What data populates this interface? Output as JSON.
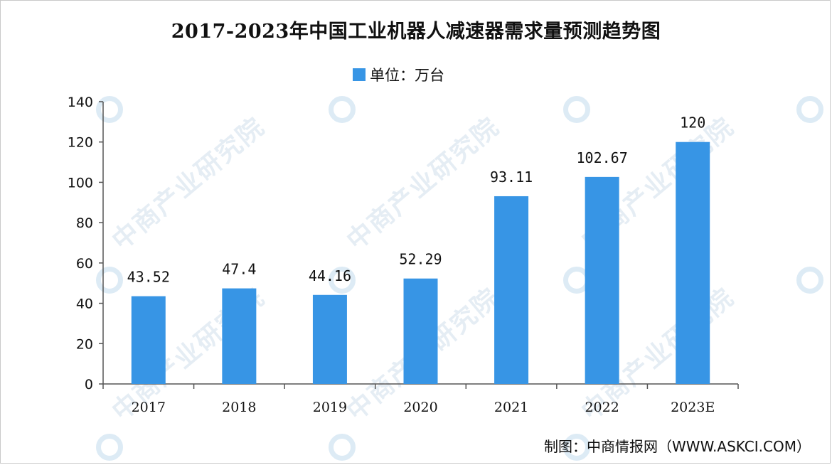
{
  "title": "2017-2023年中国工业机器人减速器需求量预测趋势图",
  "legend_label": "单位：万台",
  "source": "制图：中商情报网（WWW.ASKCI.COM）",
  "watermark_text": "中商产业研究院",
  "colors": {
    "bar": "#3795e5",
    "axis": "#555555",
    "text": "#111111"
  },
  "chart_data": {
    "type": "bar",
    "title": "2017-2023年中国工业机器人减速器需求量预测趋势图",
    "categories": [
      "2017",
      "2018",
      "2019",
      "2020",
      "2021",
      "2022",
      "2023E"
    ],
    "series": [
      {
        "name": "单位：万台",
        "values": [
          43.52,
          47.4,
          44.16,
          52.29,
          93.11,
          102.67,
          120
        ]
      }
    ],
    "value_labels": [
      "43.52",
      "47.4",
      "44.16",
      "52.29",
      "93.11",
      "102.67",
      "120"
    ],
    "ylim": [
      0,
      140
    ],
    "yticks": [
      0,
      20,
      40,
      60,
      80,
      100,
      120,
      140
    ],
    "xlabel": "",
    "ylabel": "",
    "grid": false,
    "legend_position": "top-center"
  }
}
